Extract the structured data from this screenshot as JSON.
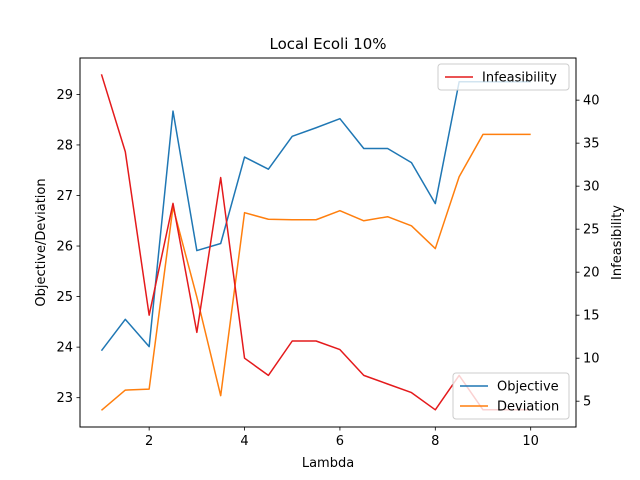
{
  "chart_data": {
    "type": "line",
    "title": "Local Ecoli 10%",
    "xlabel": "Lambda",
    "ylabel_left": "Objective/Deviation",
    "ylabel_right": "Infeasibility",
    "grid": false,
    "x": [
      1,
      1.5,
      2,
      2.5,
      3,
      3.5,
      4,
      4.5,
      5,
      5.5,
      6,
      6.5,
      7,
      7.5,
      8,
      8.5,
      9,
      9.5,
      10
    ],
    "xlim": [
      0.55,
      10.95
    ],
    "xticks": [
      2,
      4,
      6,
      8,
      10
    ],
    "ylim_left": [
      22.42,
      29.72
    ],
    "yticks_left": [
      23,
      24,
      25,
      26,
      27,
      28,
      29
    ],
    "ylim_right": [
      2.0,
      44.9
    ],
    "yticks_right": [
      5,
      10,
      15,
      20,
      25,
      30,
      35,
      40
    ],
    "series": [
      {
        "name": "Objective",
        "axis": "left",
        "color": "#1f77b4",
        "values": [
          23.93,
          24.55,
          24.01,
          28.67,
          25.91,
          26.05,
          27.76,
          27.52,
          28.17,
          28.34,
          28.52,
          27.93,
          27.93,
          27.65,
          26.84,
          29.25,
          29.25,
          29.25,
          29.25
        ]
      },
      {
        "name": "Deviation",
        "axis": "left",
        "color": "#ff7f0e",
        "values": [
          22.75,
          23.15,
          23.17,
          26.77,
          24.99,
          23.04,
          26.66,
          26.53,
          26.52,
          26.52,
          26.7,
          26.5,
          26.58,
          26.4,
          25.95,
          27.37,
          28.21,
          28.21,
          28.21
        ]
      },
      {
        "name": "Infeasibility",
        "axis": "right",
        "color": "#e41a1c",
        "values": [
          43,
          34,
          15,
          28,
          13,
          31,
          10,
          8,
          12,
          12,
          11,
          8,
          7,
          6,
          4,
          8,
          4,
          4,
          4
        ]
      }
    ],
    "legend_right": {
      "placement": "upper-right",
      "entries": [
        "Infeasibility"
      ]
    },
    "legend_left": {
      "placement": "lower-right",
      "entries": [
        "Objective",
        "Deviation"
      ]
    }
  }
}
